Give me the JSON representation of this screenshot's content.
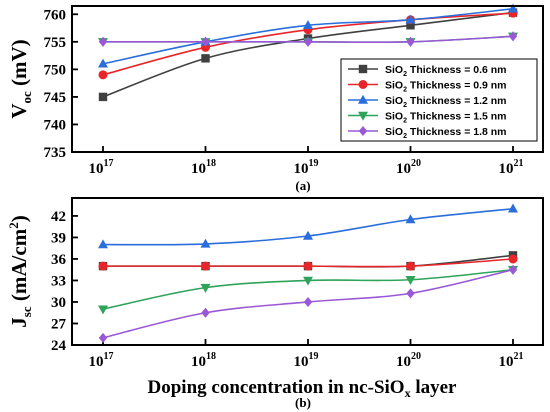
{
  "chart_data": [
    {
      "type": "line",
      "panel_label": "(a)",
      "ylabel": {
        "main": "V",
        "sub": "oc",
        "rest": " (mV)"
      },
      "ylim": [
        735,
        761.5
      ],
      "yticks": [
        735,
        740,
        745,
        750,
        755,
        760
      ],
      "x_base": "10",
      "x_exponents": [
        "17",
        "18",
        "19",
        "20",
        "21"
      ],
      "legend_position": "right-center",
      "series": [
        {
          "name": "SiO₂ Thickness = 0.6 nm",
          "name_pre": "SiO",
          "name_sub": "2",
          "name_post": " Thickness = 0.6 nm",
          "color": "#404040",
          "marker": "square",
          "values": [
            745.0,
            752.0,
            755.6,
            758.0,
            760.3
          ]
        },
        {
          "name": "SiO₂ Thickness = 0.9 nm",
          "name_pre": "SiO",
          "name_sub": "2",
          "name_post": " Thickness = 0.9 nm",
          "color": "#e8262a",
          "marker": "circle",
          "values": [
            749.0,
            754.0,
            757.2,
            759.0,
            760.2
          ]
        },
        {
          "name": "SiO₂ Thickness = 1.2 nm",
          "name_pre": "SiO",
          "name_sub": "2",
          "name_post": " Thickness = 1.2 nm",
          "color": "#2a6edb",
          "marker": "triangle",
          "values": [
            751.0,
            755.0,
            758.0,
            759.0,
            761.0
          ]
        },
        {
          "name": "SiO₂ Thickness = 1.5 nm",
          "name_pre": "SiO",
          "name_sub": "2",
          "name_post": " Thickness = 1.5 nm",
          "color": "#2ea35a",
          "marker": "tri-down",
          "values": [
            755.0,
            755.0,
            755.0,
            755.0,
            756.0
          ]
        },
        {
          "name": "SiO₂ Thickness = 1.8 nm",
          "name_pre": "SiO",
          "name_sub": "2",
          "name_post": " Thickness = 1.8 nm",
          "color": "#9a58d6",
          "marker": "diamond",
          "values": [
            755.0,
            755.0,
            755.0,
            755.0,
            756.0
          ]
        }
      ]
    },
    {
      "type": "line",
      "panel_label": "(b)",
      "ylabel": {
        "main": "J",
        "sub": "sc",
        "rest": " (mA/cm",
        "sup": "2",
        "end": ")"
      },
      "xlabel": {
        "main": "Doping concentration in nc-SiO",
        "sub": "x",
        "rest": " layer"
      },
      "ylim": [
        24,
        44.5
      ],
      "yticks": [
        24,
        27,
        30,
        33,
        36,
        39,
        42
      ],
      "x_base": "10",
      "x_exponents": [
        "17",
        "18",
        "19",
        "20",
        "21"
      ],
      "series": [
        {
          "color": "#404040",
          "marker": "square",
          "values": [
            35.0,
            35.0,
            35.0,
            35.0,
            36.5
          ]
        },
        {
          "color": "#e8262a",
          "marker": "circle",
          "values": [
            35.0,
            35.0,
            35.0,
            35.0,
            36.0
          ]
        },
        {
          "color": "#2a6edb",
          "marker": "triangle",
          "values": [
            38.0,
            38.1,
            39.2,
            41.5,
            43.0
          ]
        },
        {
          "color": "#2ea35a",
          "marker": "tri-down",
          "values": [
            29.0,
            32.0,
            33.0,
            33.1,
            34.5
          ]
        },
        {
          "color": "#9a58d6",
          "marker": "diamond",
          "values": [
            25.0,
            28.5,
            30.0,
            31.2,
            34.5
          ]
        }
      ]
    }
  ]
}
